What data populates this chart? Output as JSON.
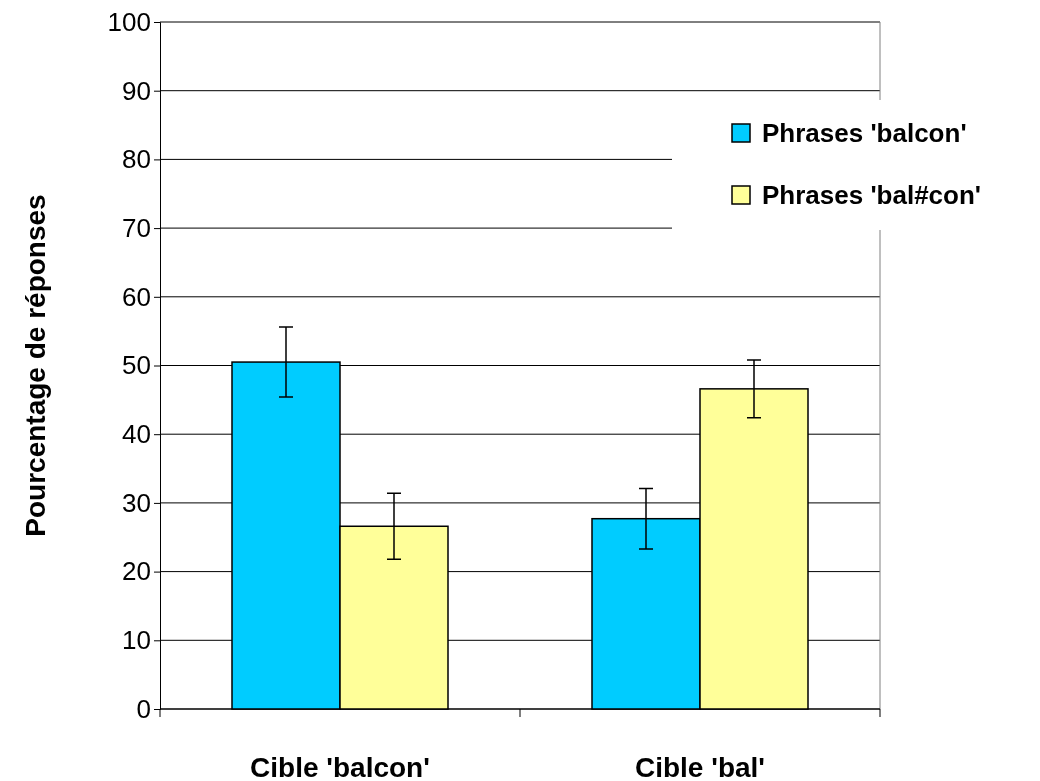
{
  "chart_data": {
    "type": "bar",
    "ylabel": "Pourcentage de réponses",
    "categories": [
      "Cible 'balcon'",
      "Cible 'bal'"
    ],
    "series": [
      {
        "name": "Phrases 'balcon'",
        "color": "#00ccff",
        "values": [
          50.5,
          27.7
        ],
        "errors": [
          5.1,
          4.4
        ]
      },
      {
        "name": "Phrases 'bal#con'",
        "color": "#ffff99",
        "values": [
          26.6,
          46.6
        ],
        "errors": [
          4.8,
          4.2
        ]
      }
    ],
    "ylim": [
      0,
      100
    ],
    "yticks": [
      0,
      10,
      20,
      30,
      40,
      50,
      60,
      70,
      80,
      90,
      100
    ],
    "grid": "y",
    "legend": "top right"
  }
}
